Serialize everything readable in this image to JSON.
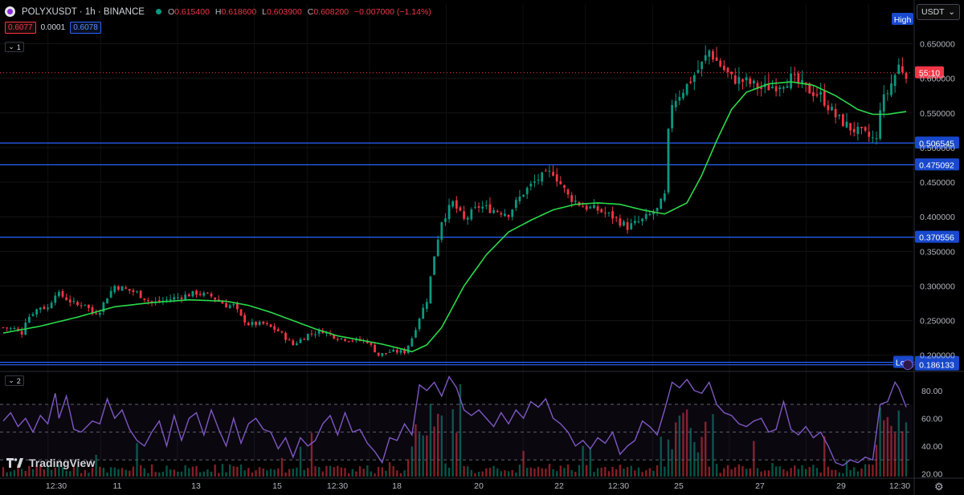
{
  "header": {
    "symbol": "POLYXUSDT · 1h · BINANCE",
    "ohlc": {
      "o_label": "O",
      "o": "0.615400",
      "h_label": "H",
      "h": "0.618600",
      "l_label": "L",
      "l": "0.603900",
      "c_label": "C",
      "c": "0.608200",
      "change": "−0.007000 (−1.14%)"
    },
    "bid": "0.6077",
    "spread": "0.0001",
    "ask": "0.6078",
    "pane1_label": "1",
    "pane2_label": "2",
    "currency": "USDT",
    "brand": "TradingView"
  },
  "colors": {
    "up": "#089981",
    "down": "#f23645",
    "ma": "#2bd94a",
    "rsi": "#7e57c2",
    "hline": "#2962ff"
  },
  "chart_data": {
    "type": "candlestick",
    "symbol": "POLYXUSDT",
    "interval": "1h",
    "price_axis": {
      "ylim": [
        0.18,
        0.69
      ],
      "ticks": [
        "0.650000",
        "0.600000",
        "0.550000",
        "0.500000",
        "0.450000",
        "0.400000",
        "0.350000",
        "0.300000",
        "0.250000",
        "0.200000"
      ]
    },
    "x_axis_ticks": [
      "12:30",
      "11",
      "13",
      "15",
      "12:30",
      "18",
      "20",
      "22",
      "12:30",
      "25",
      "27",
      "29",
      "12:30"
    ],
    "price_labels": {
      "high": "High",
      "low": "Low",
      "countdown": "55:10",
      "last_price": 0.6082
    },
    "horizontal_lines": [
      {
        "label": "0.506545",
        "value": 0.506545
      },
      {
        "label": "0.475092",
        "value": 0.475092
      },
      {
        "label": "0.370556",
        "value": 0.370556
      },
      {
        "label": "0.189700",
        "value": 0.1897
      },
      {
        "label": "0.186133",
        "value": 0.186133
      }
    ],
    "price_path": [
      [
        0,
        0.24
      ],
      [
        3,
        0.238
      ],
      [
        5,
        0.232
      ],
      [
        6,
        0.25
      ],
      [
        8,
        0.262
      ],
      [
        10,
        0.27
      ],
      [
        12,
        0.268
      ],
      [
        14,
        0.29
      ],
      [
        16,
        0.285
      ],
      [
        18,
        0.278
      ],
      [
        20,
        0.272
      ],
      [
        22,
        0.275
      ],
      [
        24,
        0.26
      ],
      [
        26,
        0.265
      ],
      [
        28,
        0.285
      ],
      [
        30,
        0.3
      ],
      [
        33,
        0.295
      ],
      [
        36,
        0.29
      ],
      [
        40,
        0.275
      ],
      [
        44,
        0.28
      ],
      [
        48,
        0.285
      ],
      [
        52,
        0.29
      ],
      [
        56,
        0.285
      ],
      [
        60,
        0.272
      ],
      [
        62,
        0.272
      ],
      [
        64,
        0.255
      ],
      [
        66,
        0.245
      ],
      [
        70,
        0.245
      ],
      [
        74,
        0.235
      ],
      [
        78,
        0.215
      ],
      [
        82,
        0.23
      ],
      [
        86,
        0.235
      ],
      [
        90,
        0.225
      ],
      [
        94,
        0.222
      ],
      [
        98,
        0.22
      ],
      [
        101,
        0.2
      ],
      [
        104,
        0.205
      ],
      [
        108,
        0.205
      ],
      [
        110,
        0.225
      ],
      [
        112,
        0.255
      ],
      [
        114,
        0.28
      ],
      [
        116,
        0.345
      ],
      [
        118,
        0.395
      ],
      [
        121,
        0.42
      ],
      [
        124,
        0.395
      ],
      [
        128,
        0.415
      ],
      [
        132,
        0.41
      ],
      [
        136,
        0.405
      ],
      [
        140,
        0.435
      ],
      [
        144,
        0.455
      ],
      [
        148,
        0.465
      ],
      [
        152,
        0.43
      ],
      [
        156,
        0.415
      ],
      [
        160,
        0.41
      ],
      [
        164,
        0.4
      ],
      [
        168,
        0.385
      ],
      [
        172,
        0.395
      ],
      [
        176,
        0.41
      ],
      [
        178,
        0.43
      ],
      [
        179,
        0.52
      ],
      [
        180,
        0.565
      ],
      [
        184,
        0.59
      ],
      [
        188,
        0.62
      ],
      [
        190,
        0.64
      ],
      [
        192,
        0.625
      ],
      [
        196,
        0.6
      ],
      [
        200,
        0.595
      ],
      [
        204,
        0.585
      ],
      [
        208,
        0.59
      ],
      [
        212,
        0.6
      ],
      [
        216,
        0.585
      ],
      [
        220,
        0.575
      ],
      [
        224,
        0.545
      ],
      [
        228,
        0.528
      ],
      [
        232,
        0.518
      ],
      [
        235,
        0.51
      ],
      [
        236,
        0.56
      ],
      [
        238,
        0.58
      ],
      [
        241,
        0.618
      ],
      [
        243,
        0.608
      ]
    ],
    "ma_path": [
      [
        0,
        0.232
      ],
      [
        10,
        0.242
      ],
      [
        20,
        0.255
      ],
      [
        30,
        0.27
      ],
      [
        40,
        0.276
      ],
      [
        50,
        0.28
      ],
      [
        60,
        0.278
      ],
      [
        66,
        0.272
      ],
      [
        72,
        0.262
      ],
      [
        78,
        0.25
      ],
      [
        84,
        0.238
      ],
      [
        90,
        0.228
      ],
      [
        96,
        0.222
      ],
      [
        102,
        0.216
      ],
      [
        108,
        0.208
      ],
      [
        110,
        0.205
      ],
      [
        114,
        0.215
      ],
      [
        118,
        0.24
      ],
      [
        124,
        0.3
      ],
      [
        130,
        0.345
      ],
      [
        136,
        0.378
      ],
      [
        142,
        0.395
      ],
      [
        148,
        0.41
      ],
      [
        154,
        0.418
      ],
      [
        160,
        0.42
      ],
      [
        166,
        0.418
      ],
      [
        172,
        0.41
      ],
      [
        178,
        0.404
      ],
      [
        184,
        0.42
      ],
      [
        188,
        0.46
      ],
      [
        192,
        0.51
      ],
      [
        196,
        0.555
      ],
      [
        200,
        0.58
      ],
      [
        206,
        0.592
      ],
      [
        212,
        0.595
      ],
      [
        218,
        0.59
      ],
      [
        224,
        0.575
      ],
      [
        230,
        0.555
      ],
      [
        234,
        0.548
      ],
      [
        238,
        0.548
      ],
      [
        243,
        0.552
      ]
    ],
    "rsi": {
      "ticks": [
        "80.00",
        "60.00",
        "40.00",
        "20.00"
      ],
      "ylim": [
        18,
        92
      ],
      "levels": [
        70,
        50,
        30
      ],
      "path": [
        [
          0,
          58
        ],
        [
          2,
          64
        ],
        [
          4,
          54
        ],
        [
          6,
          60
        ],
        [
          8,
          50
        ],
        [
          10,
          62
        ],
        [
          12,
          56
        ],
        [
          14,
          78
        ],
        [
          15,
          60
        ],
        [
          17,
          76
        ],
        [
          19,
          52
        ],
        [
          21,
          50
        ],
        [
          24,
          58
        ],
        [
          26,
          56
        ],
        [
          28,
          74
        ],
        [
          30,
          60
        ],
        [
          32,
          66
        ],
        [
          34,
          52
        ],
        [
          36,
          44
        ],
        [
          38,
          40
        ],
        [
          40,
          50
        ],
        [
          42,
          58
        ],
        [
          44,
          40
        ],
        [
          46,
          62
        ],
        [
          48,
          44
        ],
        [
          50,
          60
        ],
        [
          52,
          64
        ],
        [
          54,
          48
        ],
        [
          56,
          66
        ],
        [
          58,
          52
        ],
        [
          60,
          40
        ],
        [
          62,
          60
        ],
        [
          64,
          42
        ],
        [
          66,
          56
        ],
        [
          68,
          60
        ],
        [
          70,
          52
        ],
        [
          72,
          50
        ],
        [
          74,
          38
        ],
        [
          76,
          46
        ],
        [
          78,
          32
        ],
        [
          80,
          46
        ],
        [
          82,
          40
        ],
        [
          84,
          44
        ],
        [
          86,
          56
        ],
        [
          88,
          62
        ],
        [
          90,
          48
        ],
        [
          92,
          64
        ],
        [
          94,
          50
        ],
        [
          96,
          52
        ],
        [
          98,
          42
        ],
        [
          100,
          36
        ],
        [
          102,
          28
        ],
        [
          104,
          46
        ],
        [
          106,
          44
        ],
        [
          108,
          56
        ],
        [
          110,
          48
        ],
        [
          112,
          84
        ],
        [
          114,
          80
        ],
        [
          116,
          86
        ],
        [
          118,
          76
        ],
        [
          120,
          90
        ],
        [
          122,
          82
        ],
        [
          124,
          66
        ],
        [
          126,
          62
        ],
        [
          128,
          66
        ],
        [
          130,
          60
        ],
        [
          132,
          54
        ],
        [
          134,
          64
        ],
        [
          136,
          56
        ],
        [
          138,
          66
        ],
        [
          140,
          60
        ],
        [
          142,
          72
        ],
        [
          144,
          68
        ],
        [
          146,
          74
        ],
        [
          148,
          60
        ],
        [
          150,
          56
        ],
        [
          152,
          50
        ],
        [
          154,
          40
        ],
        [
          156,
          44
        ],
        [
          158,
          38
        ],
        [
          160,
          46
        ],
        [
          162,
          42
        ],
        [
          164,
          50
        ],
        [
          166,
          34
        ],
        [
          168,
          40
        ],
        [
          170,
          44
        ],
        [
          172,
          58
        ],
        [
          174,
          54
        ],
        [
          176,
          48
        ],
        [
          178,
          66
        ],
        [
          180,
          86
        ],
        [
          182,
          82
        ],
        [
          184,
          88
        ],
        [
          186,
          80
        ],
        [
          188,
          78
        ],
        [
          190,
          86
        ],
        [
          192,
          70
        ],
        [
          194,
          64
        ],
        [
          196,
          62
        ],
        [
          198,
          56
        ],
        [
          200,
          54
        ],
        [
          202,
          58
        ],
        [
          204,
          60
        ],
        [
          206,
          50
        ],
        [
          208,
          52
        ],
        [
          210,
          72
        ],
        [
          212,
          52
        ],
        [
          214,
          48
        ],
        [
          216,
          54
        ],
        [
          218,
          46
        ],
        [
          220,
          50
        ],
        [
          222,
          40
        ],
        [
          224,
          28
        ],
        [
          226,
          26
        ],
        [
          228,
          30
        ],
        [
          230,
          28
        ],
        [
          232,
          32
        ],
        [
          234,
          30
        ],
        [
          236,
          70
        ],
        [
          238,
          72
        ],
        [
          240,
          86
        ],
        [
          241,
          82
        ],
        [
          243,
          68
        ]
      ]
    }
  }
}
